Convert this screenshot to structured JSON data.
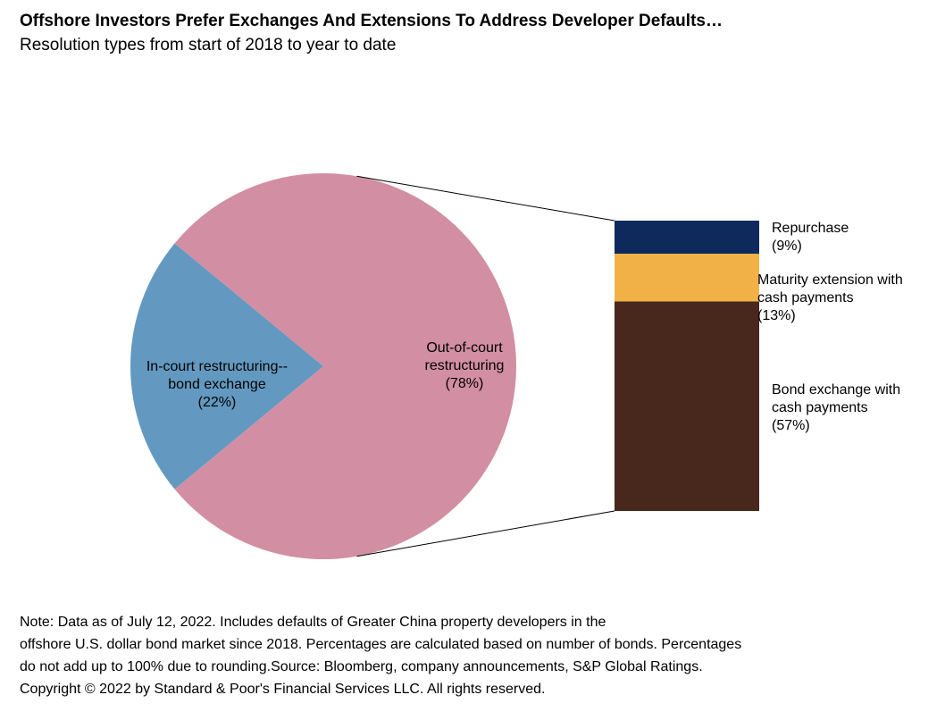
{
  "chart_data": {
    "type": "pie-of-bar",
    "title": "Offshore Investors Prefer Exchanges And Extensions  To Address Developer Defaults…",
    "subtitle": "Resolution types from start of 2018 to year to date",
    "pie": {
      "categories": [
        "In-court restructuring--bond exchange",
        "Out-of-court restructuring"
      ],
      "values": [
        22,
        78
      ],
      "value_labels": [
        "(22%)",
        "(78%)"
      ],
      "colors": [
        "#6399c0",
        "#d28ea3"
      ]
    },
    "bar": {
      "categories": [
        "Repurchase",
        "Maturity extension with cash payments",
        "Bond exchange with cash payments"
      ],
      "values": [
        9,
        13,
        57
      ],
      "value_labels": [
        "(9%)",
        "(13%)",
        "(57%)"
      ],
      "colors": [
        "#0e2a5c",
        "#f2b147",
        "#48281c"
      ]
    }
  },
  "notes": [
    "Note: Data as of July 12, 2022. Includes defaults of Greater China property developers in the",
    "offshore U.S. dollar bond market since 2018. Percentages are calculated based on number of bonds. Percentages",
    "do not add up to 100% due to rounding.Source: Bloomberg, company announcements, S&P Global Ratings.",
    "Copyright © 2022 by Standard & Poor's Financial Services LLC. All rights reserved."
  ]
}
